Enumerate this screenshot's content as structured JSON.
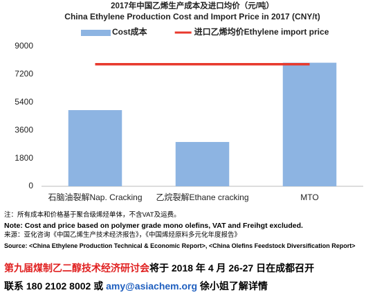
{
  "chart_data": {
    "type": "bar",
    "title": "2017年中国乙烯生产成本及进口均价（元/吨）",
    "subtitle": "China Ethylene Production Cost and Import Price in 2017 (CNY/t)",
    "categories": [
      "石脑油裂解Nap. Cracking",
      "乙烷裂解Ethane cracking",
      "MTO"
    ],
    "series": [
      {
        "name": "Cost成本",
        "color": "#8db4e2",
        "values": [
          4900,
          2850,
          7950
        ],
        "type": "bar"
      },
      {
        "name": "进口乙烯均价Ethylene import price",
        "color": "#e8392d",
        "values": [
          7850,
          7850,
          7850
        ],
        "type": "line"
      }
    ],
    "ylim": [
      0,
      9000
    ],
    "yticks": [
      0,
      1800,
      3600,
      5400,
      7200,
      9000
    ],
    "grid": false,
    "legend": "top"
  },
  "notes": [
    "注：所有成本和价格基于聚合级烯烃单体，不含VAT及运费。",
    "Note: Cost and price based on polymer grade mono olefins, VAT and Freihgt excluded.",
    "来源：亚化咨询《中国乙烯生产技术经济报告》，《中国烯烃原料多元化年度报告》",
    "Source: <China Ethylene Production Technical & Economic Report>, <China Olefins Feedstock Diversification Report>"
  ],
  "footer": [
    [
      {
        "text": "第九届煤制乙二醇技术经济研讨会",
        "color": "#e02020"
      },
      {
        "text": "将于 2018 年 4 月 26-27 日在成都召开",
        "color": "#000000"
      }
    ],
    [
      {
        "text": "联系 180 2102 8002 或 ",
        "color": "#000000"
      },
      {
        "text": "amy@asiachem.org",
        "color": "#1f5fbf"
      },
      {
        "text": " 徐小姐了解详情",
        "color": "#000000"
      }
    ]
  ]
}
